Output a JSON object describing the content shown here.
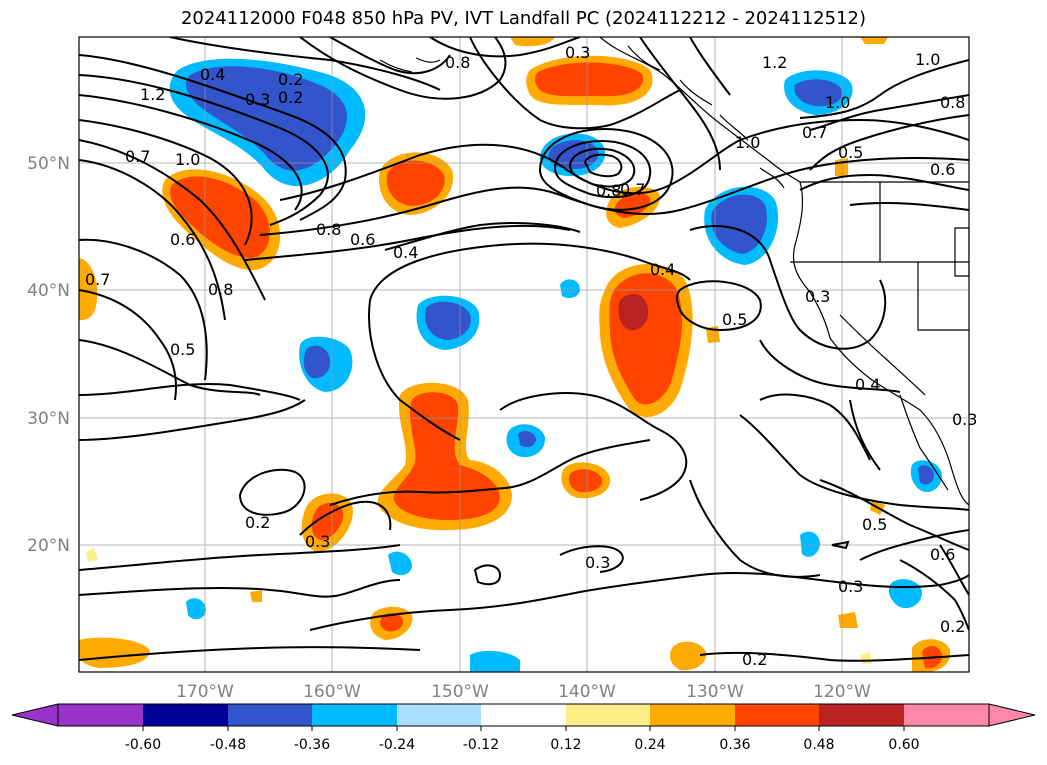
{
  "title": "2024112000 F048 850 hPa PV, IVT Landfall PC (2024112212 - 2024112512)",
  "axes": {
    "lat_labels": [
      "50°N",
      "40°N",
      "30°N",
      "20°N"
    ],
    "lon_labels": [
      "170°W",
      "160°W",
      "150°W",
      "140°W",
      "130°W",
      "120°W"
    ]
  },
  "contour_labels": [
    "0.4",
    "0.2",
    "0.3",
    "0.2",
    "1.2",
    "0.7",
    "1.0",
    "0.6",
    "0.8",
    "0.6",
    "0.8",
    "0.4",
    "0.8",
    "0.7",
    "0.7",
    "0.8",
    "0.5",
    "0.4",
    "0.5",
    "0.3",
    "0.2",
    "0.3",
    "0.3",
    "0.5",
    "0.3",
    "0.2",
    "0.2",
    "1.2",
    "1.0",
    "0.8",
    "1.0",
    "0.7",
    "0.5",
    "0.6",
    "0.3",
    "0.4",
    "0.3",
    "0.6",
    "1.0"
  ],
  "colorbar": {
    "ticks": [
      "-0.60",
      "-0.48",
      "-0.36",
      "-0.24",
      "-0.12",
      "0.12",
      "0.24",
      "0.36",
      "0.48",
      "0.60"
    ],
    "colors": [
      "#9933cc",
      "#000099",
      "#3355cc",
      "#00bbff",
      "#aaddff",
      "#ffffff",
      "#ffee88",
      "#ffaa00",
      "#ff4400",
      "#bb2222",
      "#ff88aa"
    ]
  }
}
